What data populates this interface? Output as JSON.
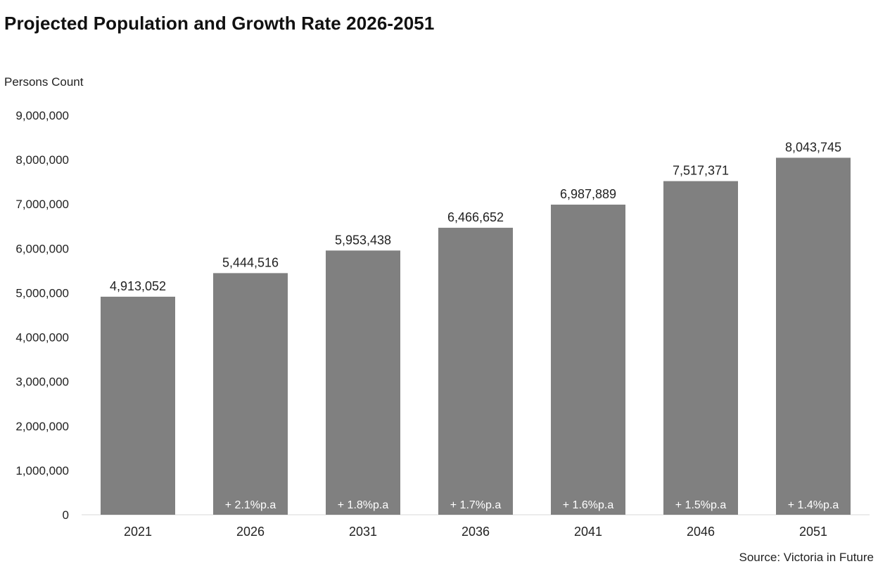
{
  "chart_data": {
    "type": "bar",
    "title": "Projected Population and Growth Rate 2026-2051",
    "ylabel": "Persons Count",
    "xlabel": "",
    "source": "Source: Victoria in Future",
    "ylim": [
      0,
      9000000
    ],
    "yticks": [
      "0",
      "1,000,000",
      "2,000,000",
      "3,000,000",
      "4,000,000",
      "5,000,000",
      "6,000,000",
      "7,000,000",
      "8,000,000",
      "9,000,000"
    ],
    "ytick_values": [
      0,
      1000000,
      2000000,
      3000000,
      4000000,
      5000000,
      6000000,
      7000000,
      8000000,
      9000000
    ],
    "categories": [
      "2021",
      "2026",
      "2031",
      "2036",
      "2041",
      "2046",
      "2051"
    ],
    "values": [
      4913052,
      5444516,
      5953438,
      6466652,
      6987889,
      7517371,
      8043745
    ],
    "value_labels": [
      "4,913,052",
      "5,444,516",
      "5,953,438",
      "6,466,652",
      "6,987,889",
      "7,517,371",
      "8,043,745"
    ],
    "growth_labels": [
      "",
      "+ 2.1%p.a",
      "+ 1.8%p.a",
      "+ 1.7%p.a",
      "+ 1.6%p.a",
      "+ 1.5%p.a",
      "+ 1.4%p.a"
    ],
    "grid": false,
    "bar_color": "#808080",
    "growth_label_color": "#ffffff"
  }
}
